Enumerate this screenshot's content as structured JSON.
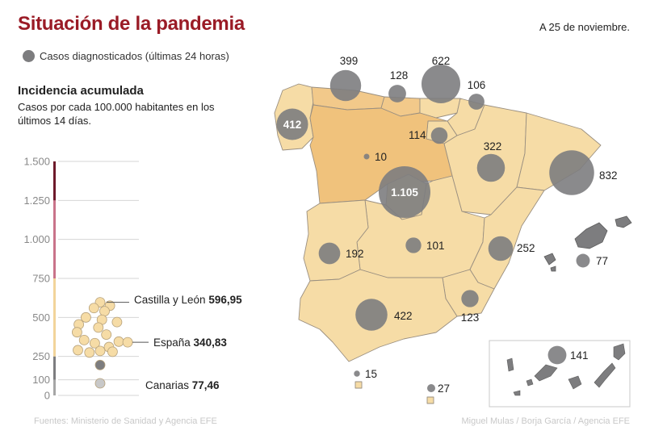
{
  "header": {
    "title": "Situación de la pandemia",
    "date": "A 25 de noviembre."
  },
  "legend": {
    "label": "Casos diagnosticados (últimas 24 horas)"
  },
  "incidence": {
    "title": "Incidencia acumulada",
    "subtitle": "Casos por cada 100.000 habitantes en los últimos 14 días."
  },
  "chart_data": {
    "type": "scatter",
    "ylim": [
      0,
      1500
    ],
    "yticks": [
      0,
      100,
      250,
      500,
      750,
      "1.000",
      "1.250",
      "1.500"
    ],
    "ytick_labels": [
      "0",
      "100",
      "250",
      "500",
      "750",
      "1.000",
      "1.250",
      "1.500"
    ],
    "ytick_values": [
      0,
      100,
      250,
      500,
      750,
      1000,
      1250,
      1500
    ],
    "scale_segments": [
      {
        "from": 0,
        "to": 100,
        "color": "#a6a6a6"
      },
      {
        "from": 100,
        "to": 250,
        "color": "#7d7d7f"
      },
      {
        "from": 250,
        "to": 750,
        "color": "#f2d49a"
      },
      {
        "from": 750,
        "to": 1250,
        "color": "#c9738a"
      },
      {
        "from": 1250,
        "to": 1500,
        "color": "#6e1a2b"
      }
    ],
    "points": [
      {
        "value": 596.95,
        "jitter": 0.0,
        "color": "#f6dca6"
      },
      {
        "value": 575,
        "jitter": 0.55,
        "color": "#f6dca6"
      },
      {
        "value": 560,
        "jitter": -0.35,
        "color": "#f6dca6"
      },
      {
        "value": 540,
        "jitter": 0.25,
        "color": "#f6dca6"
      },
      {
        "value": 500,
        "jitter": -0.8,
        "color": "#f6dca6"
      },
      {
        "value": 485,
        "jitter": 0.1,
        "color": "#f6dca6"
      },
      {
        "value": 470,
        "jitter": 0.95,
        "color": "#f6dca6"
      },
      {
        "value": 455,
        "jitter": -1.2,
        "color": "#f6dca6"
      },
      {
        "value": 435,
        "jitter": -0.1,
        "color": "#f6dca6"
      },
      {
        "value": 405,
        "jitter": -1.3,
        "color": "#f6dca6"
      },
      {
        "value": 390,
        "jitter": 0.35,
        "color": "#f6dca6"
      },
      {
        "value": 355,
        "jitter": -0.9,
        "color": "#f6dca6"
      },
      {
        "value": 345,
        "jitter": 1.05,
        "color": "#f6dca6"
      },
      {
        "value": 340.83,
        "jitter": 1.55,
        "color": "#f6dca6"
      },
      {
        "value": 335,
        "jitter": -0.3,
        "color": "#f6dca6"
      },
      {
        "value": 310,
        "jitter": 0.5,
        "color": "#f6dca6"
      },
      {
        "value": 290,
        "jitter": -1.25,
        "color": "#f6dca6"
      },
      {
        "value": 285,
        "jitter": 0.0,
        "color": "#f6dca6"
      },
      {
        "value": 280,
        "jitter": 0.7,
        "color": "#f6dca6"
      },
      {
        "value": 275,
        "jitter": -0.6,
        "color": "#f6dca6"
      },
      {
        "value": 195,
        "jitter": 0.0,
        "color": "#7d7d7f"
      },
      {
        "value": 77.46,
        "jitter": 0.0,
        "color": "#c8c8c8"
      }
    ],
    "annotations": [
      {
        "name": "Castilla y León",
        "value_text": "596,95",
        "value": 596.95
      },
      {
        "name": "España",
        "value_text": "340,83",
        "value": 340.83
      },
      {
        "name": "Canarias",
        "value_text": "77,46",
        "value": 77.46
      }
    ]
  },
  "map": {
    "regions": [
      {
        "name": "galicia",
        "color": "#f6dca6"
      },
      {
        "name": "asturias",
        "color": "#f2c98a"
      },
      {
        "name": "cantabria",
        "color": "#f2c98a"
      },
      {
        "name": "pais-vasco",
        "color": "#f6dca6"
      },
      {
        "name": "navarra",
        "color": "#f6dca6"
      },
      {
        "name": "la-rioja",
        "color": "#f6dca6"
      },
      {
        "name": "aragon",
        "color": "#f6dca6"
      },
      {
        "name": "cataluna",
        "color": "#f6dca6"
      },
      {
        "name": "castilla-y-leon",
        "color": "#f0c27c"
      },
      {
        "name": "madrid",
        "color": "#f6dca6"
      },
      {
        "name": "castilla-la-mancha",
        "color": "#f6dca6"
      },
      {
        "name": "comunidad-valenciana",
        "color": "#f6dca6"
      },
      {
        "name": "extremadura",
        "color": "#f6dca6"
      },
      {
        "name": "andalucia",
        "color": "#f6dca6"
      },
      {
        "name": "murcia",
        "color": "#f6dca6"
      },
      {
        "name": "ceuta",
        "color": "#f6dca6"
      },
      {
        "name": "melilla",
        "color": "#f6dca6"
      }
    ],
    "bubble_color": "#7d7d7f",
    "bubbles": [
      {
        "region": "galicia",
        "value": 412,
        "label": "412"
      },
      {
        "region": "asturias",
        "value": 399,
        "label": "399"
      },
      {
        "region": "cantabria",
        "value": 128,
        "label": "128"
      },
      {
        "region": "pais-vasco",
        "value": 622,
        "label": "622"
      },
      {
        "region": "navarra",
        "value": 106,
        "label": "106"
      },
      {
        "region": "la-rioja",
        "value": 114,
        "label": "114"
      },
      {
        "region": "castilla-y-leon",
        "value": 10,
        "label": "10"
      },
      {
        "region": "madrid",
        "value": 1105,
        "label": "1.105"
      },
      {
        "region": "aragon",
        "value": 322,
        "label": "322"
      },
      {
        "region": "cataluna",
        "value": 832,
        "label": "832"
      },
      {
        "region": "extremadura",
        "value": 192,
        "label": "192"
      },
      {
        "region": "castilla-la-mancha",
        "value": 101,
        "label": "101"
      },
      {
        "region": "comunidad-valenciana",
        "value": 252,
        "label": "252"
      },
      {
        "region": "baleares",
        "value": 77,
        "label": "77"
      },
      {
        "region": "murcia",
        "value": 123,
        "label": "123"
      },
      {
        "region": "andalucia",
        "value": 422,
        "label": "422"
      },
      {
        "region": "ceuta",
        "value": 15,
        "label": "15"
      },
      {
        "region": "melilla",
        "value": 27,
        "label": "27"
      },
      {
        "region": "canarias",
        "value": 141,
        "label": "141"
      }
    ]
  },
  "footer": {
    "source": "Fuentes: Ministerio de Sanidad y Agencia EFE",
    "credit": "Miguel Mulas / Borja García / Agencia EFE"
  }
}
